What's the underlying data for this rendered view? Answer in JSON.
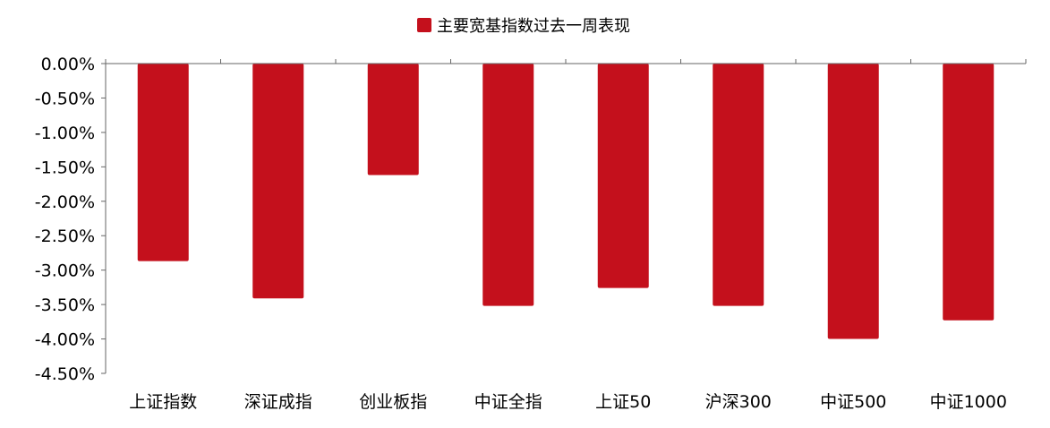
{
  "chart_data": {
    "type": "bar",
    "title": "",
    "legend": {
      "entries": [
        "主要宽基指数过去一周表现"
      ],
      "placement": "top"
    },
    "categories": [
      "上证指数",
      "深证成指",
      "创业板指",
      "中证全指",
      "上证50",
      "沪深300",
      "中证500",
      "中证1000"
    ],
    "series": [
      {
        "name": "主要宽基指数过去一周表现",
        "values": [
          -2.87,
          -3.41,
          -1.62,
          -3.52,
          -3.26,
          -3.52,
          -4.0,
          -3.73
        ],
        "color": "#c4101c"
      }
    ],
    "ylim": [
      -4.5,
      0
    ],
    "yticks": [
      "0.00%",
      "-0.50%",
      "-1.00%",
      "-1.50%",
      "-2.00%",
      "-2.50%",
      "-3.00%",
      "-3.50%",
      "-4.00%",
      "-4.50%"
    ],
    "ytick_values": [
      0,
      -0.5,
      -1,
      -1.5,
      -2,
      -2.5,
      -3,
      -3.5,
      -4,
      -4.5
    ],
    "xlabel": "",
    "ylabel": "",
    "grid": false,
    "unit": "%"
  }
}
